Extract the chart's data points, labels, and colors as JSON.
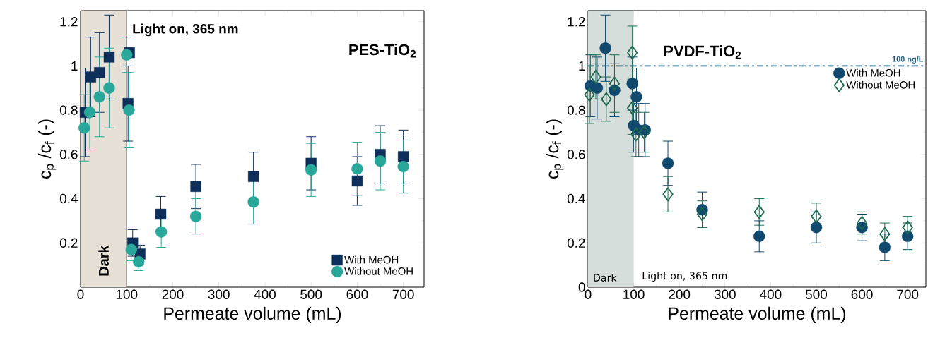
{
  "chart_data": [
    {
      "type": "scatter",
      "title": "PES-TiO$_{2}$",
      "xlabel": "Permeate volume (mL)",
      "ylabel": "c$_{p}$ /c$_{f}$ (-)",
      "xlim": [
        0,
        745
      ],
      "ylim": [
        0,
        1.25
      ],
      "xticks": [
        0,
        100,
        200,
        300,
        400,
        500,
        600,
        700
      ],
      "yticks": [
        0.2,
        0.4,
        0.6,
        0.8,
        1,
        1.2
      ],
      "legend": "bottom right",
      "bands": [
        {
          "axis": "x",
          "from": 0,
          "to": 100,
          "label": "Dark",
          "color": "#e6e0d6"
        }
      ],
      "annotations": [
        "Light on, 365 nm"
      ],
      "series": [
        {
          "name": "With MeOH",
          "color": "#0d2f5a",
          "marker": "square",
          "x": [
            10,
            22,
            41,
            62,
            106,
            103,
            113,
            129,
            174,
            250,
            375,
            500,
            600,
            650,
            700
          ],
          "values": [
            0.79,
            0.95,
            0.97,
            1.04,
            1.06,
            0.83,
            0.2,
            0.15,
            0.33,
            0.455,
            0.5,
            0.56,
            0.48,
            0.6,
            0.59
          ],
          "errors": [
            0.2,
            0.18,
            0.18,
            0.19,
            null,
            0.17,
            0.06,
            0.04,
            0.08,
            0.1,
            0.11,
            0.12,
            0.11,
            0.13,
            0.12
          ]
        },
        {
          "name": "Without MeOH",
          "color": "#2aa79b",
          "marker": "circle",
          "x": [
            8,
            20,
            41,
            62,
            100,
            105,
            110,
            126,
            175,
            250,
            375,
            500,
            600,
            650,
            700
          ],
          "values": [
            0.72,
            0.79,
            0.86,
            0.9,
            1.05,
            0.8,
            0.17,
            0.115,
            0.25,
            0.32,
            0.385,
            0.53,
            0.535,
            0.57,
            0.545
          ],
          "errors": [
            0.15,
            0.17,
            0.18,
            0.18,
            0.08,
            0.17,
            0.05,
            0.04,
            0.07,
            0.08,
            0.1,
            0.12,
            0.12,
            0.13,
            0.12
          ]
        }
      ]
    },
    {
      "type": "scatter",
      "title": "PVDF-TiO$_{2}$",
      "xlabel": "Permeate volume (mL)",
      "ylabel": "c$_{p}$ /c$_{f}$ (-)",
      "xlim": [
        0,
        740
      ],
      "ylim": [
        0,
        1.25
      ],
      "xticks": [
        0,
        100,
        200,
        300,
        400,
        500,
        600,
        700
      ],
      "yticks": [
        0,
        0.2,
        0.4,
        0.6,
        0.8,
        1,
        1.2
      ],
      "legend": "top right",
      "bands": [
        {
          "axis": "x",
          "from": 0,
          "to": 100,
          "label": "Dark",
          "color": "#d5dedb"
        }
      ],
      "ref_lines": [
        {
          "axis": "y",
          "value": 1,
          "label": "100 ng/L",
          "color": "#1f5e7e",
          "line_style": "dashdot"
        }
      ],
      "annotations": [
        "Light on, 365 nm"
      ],
      "series": [
        {
          "name": "With MeOH",
          "color": "#10486e",
          "marker": "circle",
          "x": [
            5,
            20,
            38,
            58,
            97,
            106,
            100,
            111,
            125,
            175,
            250,
            375,
            500,
            600,
            650,
            700
          ],
          "values": [
            0.91,
            0.9,
            1.08,
            0.89,
            0.92,
            0.86,
            0.73,
            0.71,
            0.71,
            0.56,
            0.35,
            0.23,
            0.27,
            0.27,
            0.18,
            0.23
          ],
          "errors": [
            0.14,
            0.14,
            0.15,
            0.12,
            0.12,
            0.13,
            0.12,
            0.12,
            0.12,
            0.1,
            0.08,
            0.07,
            0.07,
            0.06,
            0.06,
            0.06
          ]
        },
        {
          "name": "Without MeOH",
          "color": "#1e6b50",
          "marker": "diamond",
          "x": [
            3,
            17,
            40,
            58,
            97,
            97,
            105,
            123,
            175,
            250,
            375,
            500,
            600,
            650,
            700
          ],
          "values": [
            0.87,
            0.95,
            0.85,
            0.92,
            1.06,
            0.81,
            0.69,
            0.7,
            0.42,
            0.33,
            0.34,
            0.32,
            0.29,
            0.24,
            0.27
          ],
          "errors": [
            0.13,
            0.1,
            0.1,
            0.13,
            0.12,
            0.12,
            0.1,
            0.09,
            0.08,
            0.06,
            0.06,
            0.06,
            0.05,
            0.05,
            0.05
          ]
        }
      ]
    }
  ]
}
